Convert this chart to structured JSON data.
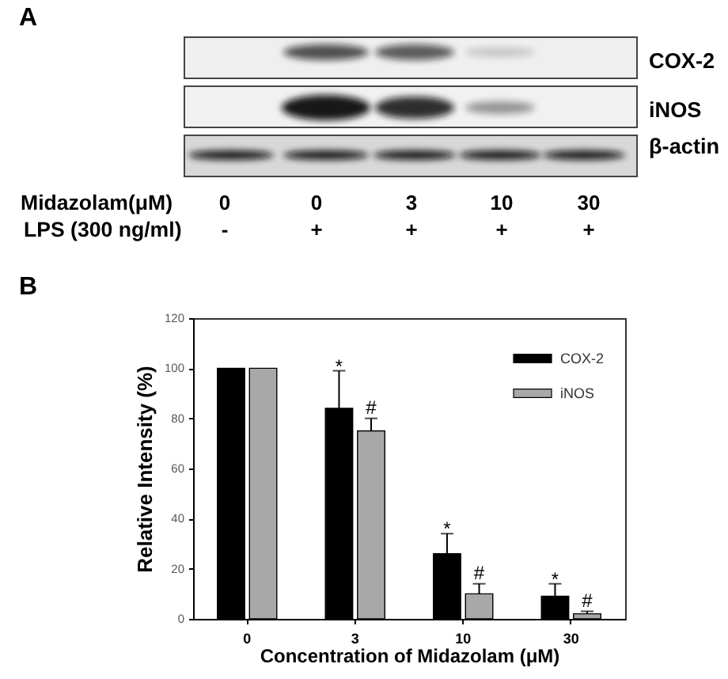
{
  "chart_data": [
    {
      "type": "other",
      "title": "A",
      "annotations": [
        "COX-2",
        "iNOS",
        "β-actin",
        "Midazolam(μM)",
        "0",
        "0",
        "3",
        "10",
        "30",
        "LPS (300 ng/ml)",
        "-",
        "+",
        "+",
        "+",
        "+"
      ]
    },
    {
      "type": "bar",
      "title": "B",
      "xlabel": "Concentration of Midazolam (μM)",
      "ylabel": "Relative Intensity (%)",
      "categories": [
        "0",
        "3",
        "10",
        "30"
      ],
      "series": [
        {
          "name": "COX-2",
          "color": "#000000",
          "values": [
            100,
            84,
            26,
            9
          ],
          "errors": [
            null,
            [
              84,
              99
            ],
            [
              26,
              34
            ],
            [
              9,
              14
            ]
          ]
        },
        {
          "name": "iNOS",
          "color": "#a8a8a8",
          "values": [
            100,
            75,
            10,
            2
          ],
          "errors": [
            null,
            [
              75,
              80
            ],
            [
              10,
              14
            ],
            [
              2,
              3
            ]
          ]
        }
      ],
      "ylim": [
        0,
        120
      ],
      "yticks": [
        0,
        20,
        40,
        60,
        80,
        100,
        120
      ],
      "legend": "top right",
      "annotations": [
        {
          "text": "*",
          "x": "3",
          "y": 84
        },
        {
          "text": "#",
          "x": "3",
          "y": 75
        },
        {
          "text": "*",
          "x": "10",
          "y": 26
        },
        {
          "text": "#",
          "x": "10",
          "y": 10
        },
        {
          "text": "*",
          "x": "30",
          "y": 9
        },
        {
          "text": "#",
          "x": "30",
          "y": 2
        }
      ]
    }
  ]
}
